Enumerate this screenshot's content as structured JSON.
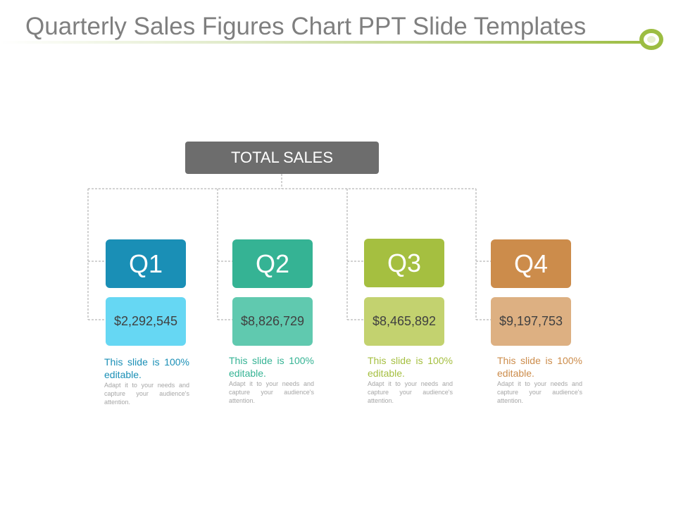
{
  "title": "Quarterly Sales Figures Chart PPT Slide Templates",
  "root": {
    "label": "TOTAL SALES",
    "color": "#6d6d6d"
  },
  "quarters": [
    {
      "label": "Q1",
      "value": "$2,292,545",
      "color": "#1a8fb6",
      "value_color": "#66d7f3",
      "text_color": "#1a8fb6",
      "desc_head": "This slide is 100% editable.",
      "desc_body": "Adapt it to your needs and capture your audience's attention."
    },
    {
      "label": "Q2",
      "value": "$8,826,729",
      "color": "#35b394",
      "value_color": "#60c9af",
      "text_color": "#35b394",
      "desc_head": "This slide is 100% editable.",
      "desc_body": "Adapt it to your needs and capture your audience's attention."
    },
    {
      "label": "Q3",
      "value": "$8,465,892",
      "color": "#a5bf40",
      "value_color": "#c3d26f",
      "text_color": "#a5bf40",
      "desc_head": "This slide is 100% editable.",
      "desc_body": "Adapt it to your needs and capture your audience's attention."
    },
    {
      "label": "Q4",
      "value": "$9,197,753",
      "color": "#cc8c4b",
      "value_color": "#ddb082",
      "text_color": "#cc8c4b",
      "desc_head": "This slide is 100% editable.",
      "desc_body": "Adapt it to your needs and capture your audience's attention."
    }
  ]
}
